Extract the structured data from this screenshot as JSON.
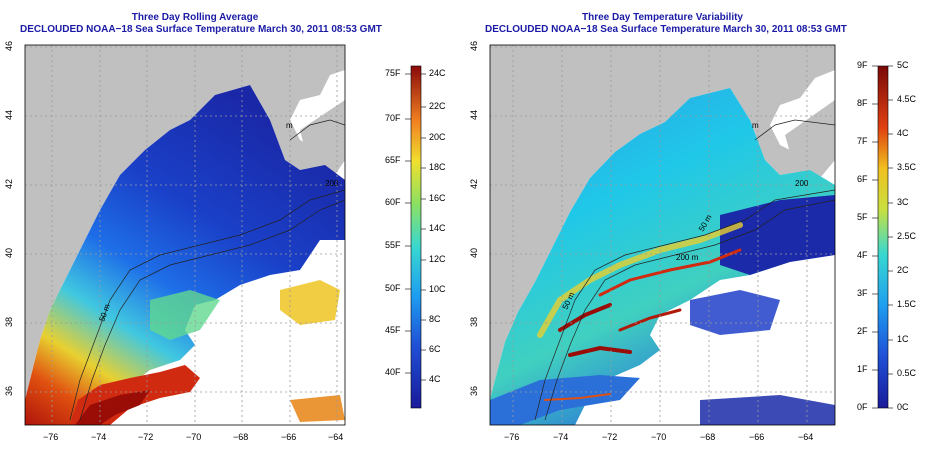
{
  "panels": [
    {
      "title_line1": "Three Day Rolling Average",
      "title_line2": "DECLOUDED NOAA−18 Sea Surface Temperature March 30, 2011 08:53 GMT",
      "colorbar": {
        "f_labels": [
          "75F",
          "70F",
          "65F",
          "60F",
          "55F",
          "50F",
          "45F",
          "40F"
        ],
        "c_labels": [
          "24C",
          "22C",
          "20C",
          "18C",
          "16C",
          "14C",
          "12C",
          "10C",
          "8C",
          "6C",
          "4C"
        ]
      }
    },
    {
      "title_line1": "Three Day Temperature Variability",
      "title_line2": "DECLOUDED NOAA−18 Sea Surface Temperature March 30, 2011 08:53 GMT",
      "colorbar": {
        "f_labels": [
          "9F",
          "8F",
          "7F",
          "6F",
          "5F",
          "4F",
          "3F",
          "2F",
          "1F",
          "0F"
        ],
        "c_labels": [
          "5C",
          "4.5C",
          "4C",
          "3.5C",
          "3C",
          "2.5C",
          "2C",
          "1.5C",
          "1C",
          "0.5C",
          "0C"
        ]
      }
    }
  ],
  "lon_ticks": [
    "−76",
    "−74",
    "−72",
    "−70",
    "−68",
    "−66",
    "−64"
  ],
  "lat_ticks": [
    "46",
    "44",
    "42",
    "40",
    "38",
    "36"
  ],
  "contour_labels": {
    "left": [
      "m",
      "200",
      "50 m"
    ],
    "right": [
      "m",
      "200",
      "50 m",
      "200 m",
      "50 m"
    ]
  },
  "colors": {
    "land": "#c0c0c0",
    "title": "#1a1aa6",
    "grid": "#9a9a9a"
  }
}
